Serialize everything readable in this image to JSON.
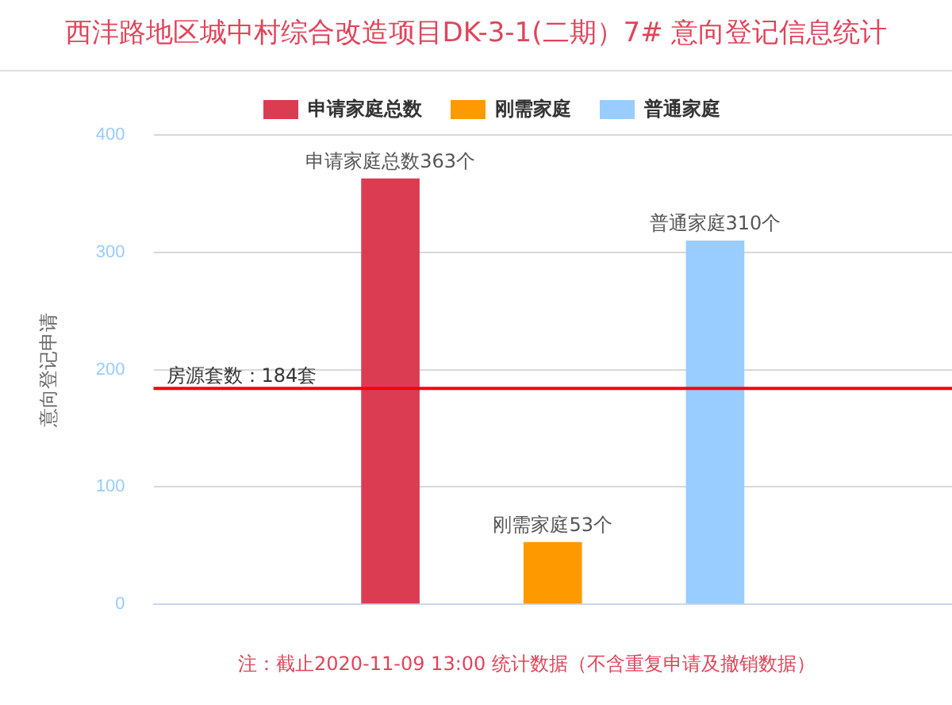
{
  "chart_data": {
    "type": "bar",
    "title": "西沣路地区城中村综合改造项目DK-3-1(二期）7# 意向登记信息统计",
    "ylabel": "意向登记申请",
    "categories": [
      null
    ],
    "series": [
      {
        "name": "申请家庭总数",
        "color": "#db3c52",
        "values": [
          363
        ],
        "value_labels": [
          "申请家庭总数363个"
        ]
      },
      {
        "name": "刚需家庭",
        "color": "#ff9900",
        "values": [
          53
        ],
        "value_labels": [
          "刚需家庭53个"
        ]
      },
      {
        "name": "普通家庭",
        "color": "#99ccff",
        "values": [
          310
        ],
        "value_labels": [
          "普通家庭310个"
        ]
      }
    ],
    "ylim": [
      0,
      400
    ],
    "yticks": [
      0,
      100,
      200,
      300,
      400
    ],
    "grid": "y",
    "legend": "top",
    "ref_lines": [
      {
        "axis": "y",
        "value": 184,
        "label": "房源套数：184套",
        "color": "#ff0000"
      }
    ],
    "annotations": [
      "注：截止2020-11-09 13:00 统计数据（不含重复申请及撤销数据）"
    ]
  }
}
